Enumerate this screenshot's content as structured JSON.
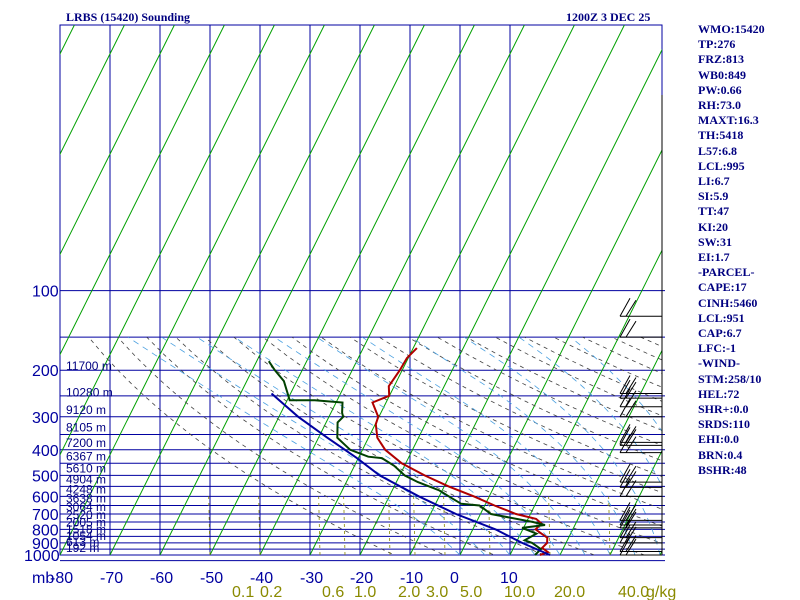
{
  "chart_data": {
    "type": "skew-t sounding",
    "title": "LRBS (15420) Sounding",
    "datetime": "1200Z  3 DEC 25",
    "pressure_levels": [
      100,
      200,
      300,
      400,
      500,
      600,
      700,
      800,
      900,
      1000
    ],
    "minor_pressure_levels": [
      150,
      250,
      350,
      450,
      550,
      650,
      750,
      850,
      950,
      1050
    ],
    "pressure_unit": "mb",
    "temp_ticks": [
      -80,
      -70,
      -60,
      -50,
      -40,
      -30,
      -20,
      -10,
      0,
      10
    ],
    "temp_tick_labels": [
      "-80",
      "-70",
      "-60",
      "-50",
      "-40",
      "-30",
      "-20",
      "-10",
      "0",
      "10"
    ],
    "height_labels": [
      {
        "p": 205,
        "label": "11700 m"
      },
      {
        "p": 258,
        "label": "10280 m"
      },
      {
        "p": 300,
        "label": "9120 m"
      },
      {
        "p": 350,
        "label": "8105 m"
      },
      {
        "p": 400,
        "label": "7200 m"
      },
      {
        "p": 450,
        "label": "6367 m"
      },
      {
        "p": 500,
        "label": "5610 m"
      },
      {
        "p": 550,
        "label": "4904 m"
      },
      {
        "p": 600,
        "label": "4248 m"
      },
      {
        "p": 650,
        "label": "3638 m"
      },
      {
        "p": 700,
        "label": "3064 m"
      },
      {
        "p": 750,
        "label": "2520 m"
      },
      {
        "p": 800,
        "label": "2005 m"
      },
      {
        "p": 850,
        "label": "1518 m"
      },
      {
        "p": 900,
        "label": "1054 m"
      },
      {
        "p": 950,
        "label": "613 m"
      },
      {
        "p": 1000,
        "label": "192 m"
      }
    ],
    "mixing_ratio_labels": [
      "0.1",
      "0.2",
      "0.6",
      "1.0",
      "2.0",
      "3.0",
      "5.0",
      "10.0",
      "20.0",
      "40.0"
    ],
    "mixing_ratio_unit": "g/kg",
    "series": [
      {
        "name": "temperature",
        "color": "#b00000",
        "points": [
          [
            165,
            -60
          ],
          [
            180,
            -60
          ],
          [
            200,
            -59
          ],
          [
            230,
            -58
          ],
          [
            250,
            -56
          ],
          [
            265,
            -58
          ],
          [
            300,
            -54
          ],
          [
            320,
            -53
          ],
          [
            360,
            -50
          ],
          [
            400,
            -46
          ],
          [
            450,
            -40
          ],
          [
            500,
            -33
          ],
          [
            550,
            -26
          ],
          [
            600,
            -19
          ],
          [
            650,
            -13
          ],
          [
            700,
            -7
          ],
          [
            730,
            -2
          ],
          [
            760,
            0
          ],
          [
            800,
            0
          ],
          [
            830,
            2
          ],
          [
            860,
            4
          ],
          [
            900,
            5
          ],
          [
            940,
            5
          ],
          [
            975,
            7
          ],
          [
            1000,
            6
          ]
        ]
      },
      {
        "name": "dewpoint",
        "color": "#004000",
        "points": [
          [
            185,
            -87
          ],
          [
            200,
            -84
          ],
          [
            220,
            -80
          ],
          [
            260,
            -75
          ],
          [
            260,
            -70
          ],
          [
            265,
            -64
          ],
          [
            290,
            -62
          ],
          [
            300,
            -61
          ],
          [
            315,
            -61
          ],
          [
            360,
            -58
          ],
          [
            400,
            -53
          ],
          [
            425,
            -48
          ],
          [
            430,
            -45
          ],
          [
            460,
            -41
          ],
          [
            500,
            -37
          ],
          [
            530,
            -33
          ],
          [
            570,
            -27
          ],
          [
            600,
            -24
          ],
          [
            640,
            -20
          ],
          [
            650,
            -16
          ],
          [
            700,
            -12
          ],
          [
            750,
            -2
          ],
          [
            770,
            1
          ],
          [
            790,
            -3
          ],
          [
            830,
            1
          ],
          [
            880,
            0
          ],
          [
            900,
            2
          ],
          [
            950,
            5
          ],
          [
            1000,
            5
          ]
        ]
      },
      {
        "name": "parcel",
        "color": "#0000a0",
        "points": [
          [
            245,
            -80
          ],
          [
            300,
            -70
          ],
          [
            360,
            -60
          ],
          [
            430,
            -50
          ],
          [
            500,
            -42
          ],
          [
            600,
            -30
          ],
          [
            700,
            -19
          ],
          [
            800,
            -8
          ],
          [
            900,
            0
          ],
          [
            1000,
            8
          ]
        ]
      }
    ],
    "wind_barbs": [
      {
        "p": 125
      },
      {
        "p": 150
      },
      {
        "p": 245
      },
      {
        "p": 255
      },
      {
        "p": 275
      },
      {
        "p": 300
      },
      {
        "p": 375
      },
      {
        "p": 385
      },
      {
        "p": 410
      },
      {
        "p": 530
      },
      {
        "p": 555
      },
      {
        "p": 600
      },
      {
        "p": 740
      },
      {
        "p": 770
      },
      {
        "p": 790
      },
      {
        "p": 860
      },
      {
        "p": 900
      },
      {
        "p": 970
      },
      {
        "p": 1000
      }
    ],
    "colors": {
      "isobar": "#0000a0",
      "isotherm": "#00a000",
      "dry_adiabat": "#404040",
      "moist_adiabat": "#4aa0e0",
      "mixing_ratio": "#8a8a00"
    }
  },
  "indices": [
    "WMO:15420",
    "TP:276",
    "FRZ:813",
    "WB0:849",
    "PW:0.66",
    "RH:73.0",
    "MAXT:16.3",
    "TH:5418",
    "L57:6.8",
    "LCL:995",
    "LI:6.7",
    "SI:5.9",
    "TT:47",
    "KI:20",
    "SW:31",
    "EI:1.7",
    "-PARCEL-",
    "CAPE:17",
    "CINH:5460",
    "LCL:951",
    "CAP:6.7",
    "LFC:-1",
    "-WIND-",
    "STM:258/10",
    "HEL:72",
    "SHR+:0.0",
    "SRDS:110",
    "EHI:0.0",
    "BRN:0.4",
    "BSHR:48"
  ]
}
